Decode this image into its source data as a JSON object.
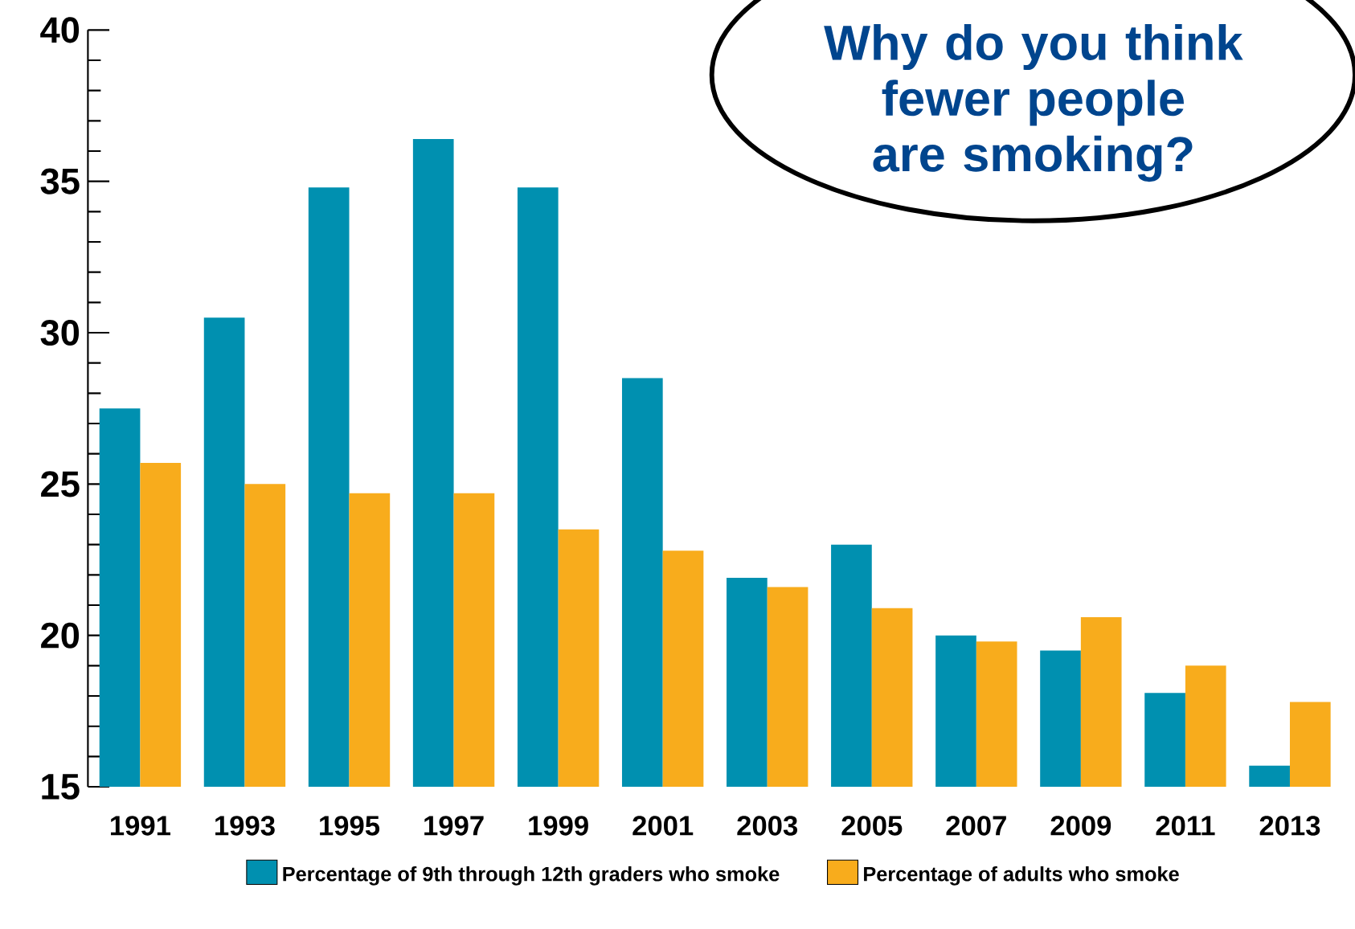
{
  "chart_data": {
    "type": "bar",
    "title": "Why do you think fewer people are smoking?",
    "categories": [
      "1991",
      "1993",
      "1995",
      "1997",
      "1999",
      "2001",
      "2003",
      "2005",
      "2007",
      "2009",
      "2011",
      "2013"
    ],
    "series": [
      {
        "name": "Percentage of 9th through 12th graders who smoke",
        "color": "#0090b0",
        "values": [
          27.5,
          30.5,
          34.8,
          36.4,
          34.8,
          28.5,
          21.9,
          23.0,
          20.0,
          19.5,
          18.1,
          15.7
        ]
      },
      {
        "name": "Percentage of adults who smoke",
        "color": "#f8ac1c",
        "values": [
          25.7,
          25.0,
          24.7,
          24.7,
          23.5,
          22.8,
          21.6,
          20.9,
          19.8,
          20.6,
          19.0,
          17.8
        ]
      }
    ],
    "ylim": [
      15,
      40
    ],
    "yticks": [
      15,
      20,
      25,
      30,
      35,
      40
    ],
    "grid": false,
    "legend": "bottom"
  }
}
